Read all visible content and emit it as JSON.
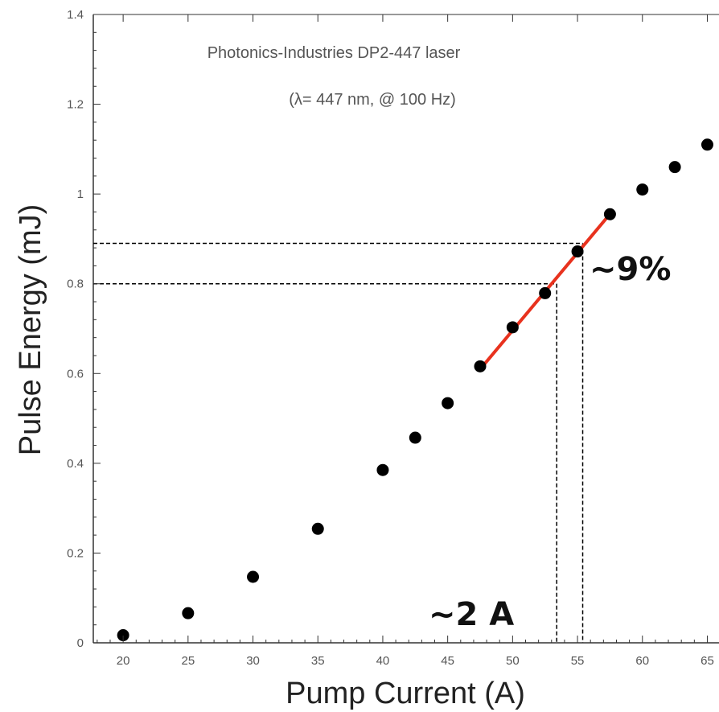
{
  "chart_data": {
    "type": "scatter",
    "title": "",
    "xlabel": "Pump Current (A)",
    "ylabel": "Pulse Energy (mJ)",
    "xlim": [
      17.7,
      65.9
    ],
    "ylim": [
      0,
      1.4
    ],
    "xticks": [
      20,
      25,
      30,
      35,
      40,
      45,
      50,
      55,
      60,
      65
    ],
    "yticks": [
      0,
      0.2,
      0.4,
      0.6,
      0.8,
      1,
      1.2,
      1.4
    ],
    "xtick_labels": [
      "20",
      "25",
      "30",
      "35",
      "40",
      "45",
      "50",
      "55",
      "60",
      "65"
    ],
    "ytick_labels": [
      "0",
      "0.2",
      "0.4",
      "0.6",
      "0.8",
      "1",
      "1.2",
      "1.4"
    ],
    "grid": false,
    "series": [
      {
        "x": [
          20,
          25,
          30,
          35,
          40,
          42.5,
          45,
          47.5,
          50,
          52.5,
          55,
          57.5,
          60,
          62.5,
          65
        ],
        "y": [
          0.017,
          0.066,
          0.147,
          0.254,
          0.385,
          0.457,
          0.534,
          0.616,
          0.703,
          0.779,
          0.872,
          0.955,
          1.01,
          1.06,
          1.11
        ],
        "color": "#000000"
      }
    ],
    "annotations": {
      "line1": "Photonics-Industries DP2-447 laser",
      "line2": "(λ= 447 nm, @ 100 Hz)",
      "slope_label": "~9%",
      "current_label": "~2 A"
    },
    "fit_line": {
      "x": [
        47.6,
        57.4
      ],
      "y": [
        0.613,
        0.952
      ],
      "color": "#e8321e"
    },
    "guide_lines": {
      "y": [
        0.8,
        0.89
      ],
      "x": [
        53.4,
        55.4
      ]
    }
  }
}
